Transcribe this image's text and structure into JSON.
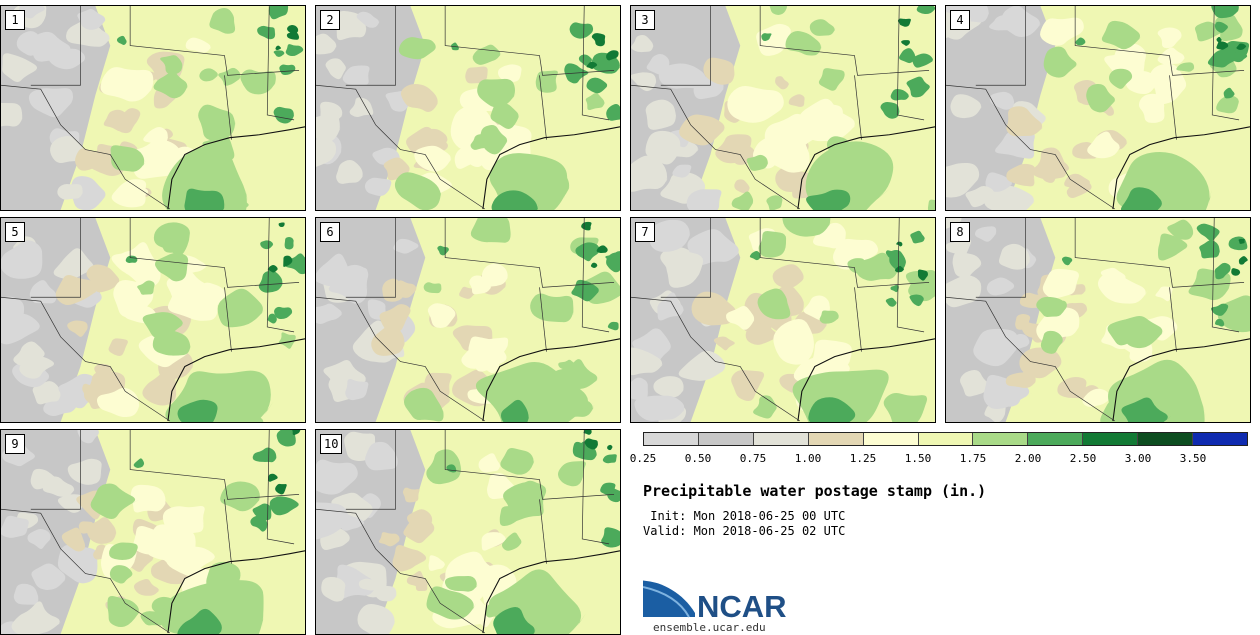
{
  "map": {
    "title": "Precipitable water postage stamp (in.)",
    "init_label": " Init: Mon 2018-06-25 00 UTC",
    "valid_label": "Valid: Mon 2018-06-25 02 UTC",
    "members": [
      "1",
      "2",
      "3",
      "4",
      "5",
      "6",
      "7",
      "8",
      "9",
      "10"
    ]
  },
  "colorbar": {
    "ticks": [
      "0.25",
      "0.50",
      "0.75",
      "1.00",
      "1.25",
      "1.50",
      "1.75",
      "2.00",
      "2.50",
      "3.00",
      "3.50"
    ],
    "colors": [
      "#d8d8d8",
      "#c7c7c7",
      "#e2e2d8",
      "#e3d7b4",
      "#fdfdd2",
      "#eff7b3",
      "#a9da88",
      "#4caa5b",
      "#127a35",
      "#0d4d20",
      "#0f2bb0"
    ]
  },
  "logo": {
    "text": "NCAR",
    "url": "ensemble.ucar.edu",
    "colors": {
      "blue": "#1b5ea3",
      "text": "#1f4f86"
    }
  }
}
